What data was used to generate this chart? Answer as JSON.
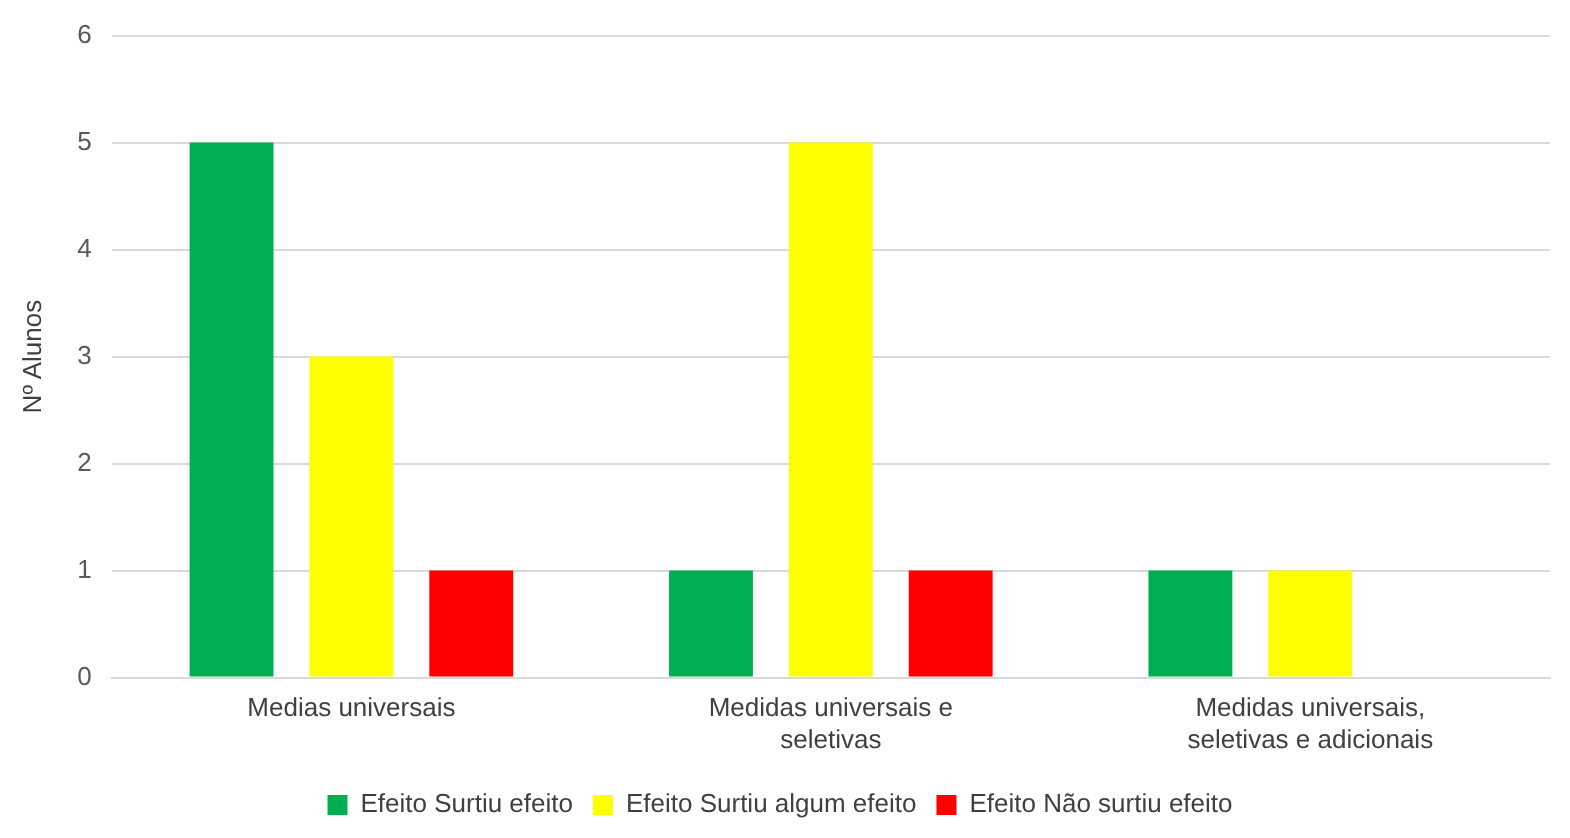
{
  "chart_data": {
    "type": "bar",
    "ylabel": "Nº Alunos",
    "categories": [
      "Medias universais",
      "Medidas universais e seletivas",
      "Medidas universais, seletivas e adicionais"
    ],
    "series": [
      {
        "name": "Efeito Surtiu efeito",
        "color": "#00b050",
        "values": [
          5,
          1,
          1
        ]
      },
      {
        "name": "Efeito Surtiu algum efeito",
        "color": "#ffff00",
        "values": [
          3,
          5,
          1
        ]
      },
      {
        "name": "Efeito Não surtiu efeito",
        "color": "#ff0000",
        "values": [
          1,
          1,
          0
        ]
      }
    ],
    "ylim": [
      0,
      6
    ],
    "yticks": [
      0,
      1,
      2,
      3,
      4,
      5,
      6
    ],
    "grid": "y",
    "legend": "bottom"
  }
}
